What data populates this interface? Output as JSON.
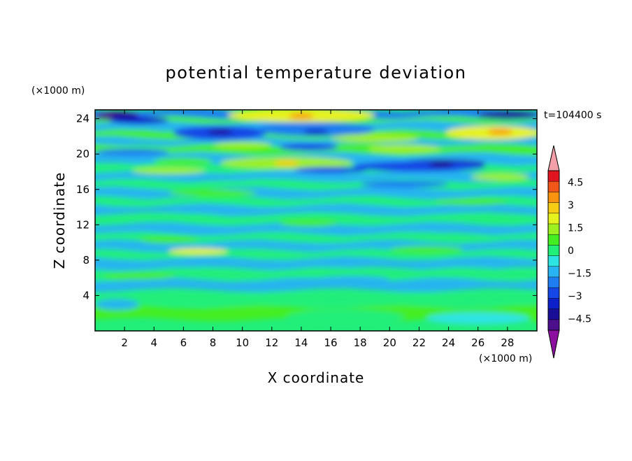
{
  "chart_data": {
    "type": "heatmap",
    "title": "potential temperature deviation",
    "xlabel": "X coordinate",
    "ylabel": "Z coordinate",
    "x_units": "(×1000 m)",
    "y_units": "(×1000 m)",
    "time_label": "t=104400 s",
    "xlim": [
      0,
      30
    ],
    "ylim": [
      0,
      25
    ],
    "x_ticks": [
      "2",
      "4",
      "6",
      "8",
      "10",
      "12",
      "14",
      "16",
      "18",
      "20",
      "22",
      "24",
      "26",
      "28"
    ],
    "y_ticks": [
      "4",
      "8",
      "12",
      "16",
      "20",
      "24"
    ],
    "colorbar": {
      "labels": [
        "4.5",
        "3",
        "1.5",
        "0",
        "−1.5",
        "−3",
        "−4.5"
      ],
      "levels": [
        -5.25,
        -4.5,
        -3.75,
        -3,
        -2.25,
        -1.5,
        -0.75,
        0,
        0.75,
        1.5,
        2.25,
        3,
        3.75,
        4.5,
        5.25
      ],
      "colors": [
        "#4b0f8c",
        "#1a0e96",
        "#0c1fc8",
        "#1547e6",
        "#1e7df0",
        "#27b4f0",
        "#2ee4e2",
        "#22ee7a",
        "#44ee22",
        "#9cf020",
        "#e6f21e",
        "#f6cc14",
        "#fa9410",
        "#f0561a",
        "#e0141e"
      ],
      "over_color": "#f4a0a8",
      "under_color": "#8c10a0"
    },
    "field": [
      {
        "z": 24.3,
        "x": 2.0,
        "value": -4.2
      },
      {
        "z": 24.3,
        "x": 14.0,
        "value": 3.8
      },
      {
        "z": 24.3,
        "x": 28.0,
        "value": -4.0
      },
      {
        "z": 22.5,
        "x": 8.5,
        "value": -4.0
      },
      {
        "z": 22.5,
        "x": 15.0,
        "value": -3.5
      },
      {
        "z": 22.5,
        "x": 27.5,
        "value": 4.2
      },
      {
        "z": 19.0,
        "x": 13.0,
        "value": 3.0
      },
      {
        "z": 18.8,
        "x": 23.5,
        "value": -3.8
      },
      {
        "z": 9.0,
        "x": 7.0,
        "value": 2.4
      },
      {
        "z": 2.0,
        "x": 15.0,
        "value": 0.3
      }
    ]
  }
}
